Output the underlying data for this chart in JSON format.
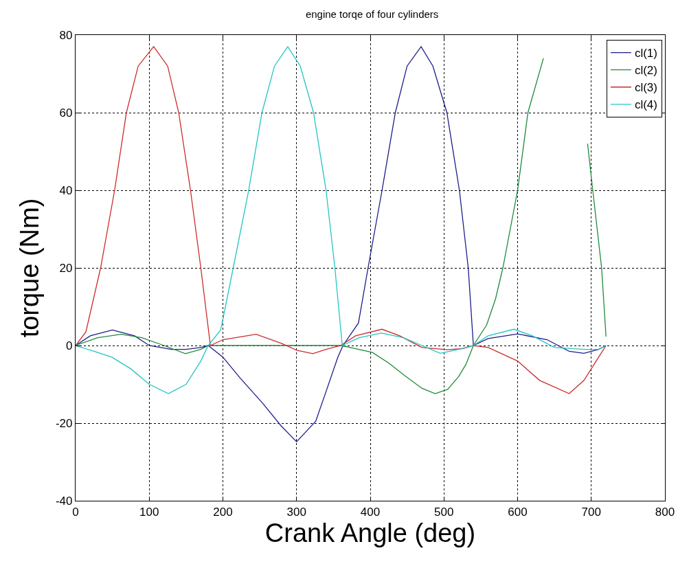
{
  "chart_data": {
    "type": "line",
    "title": "engine torqe of four cylinders",
    "xlabel": "Crank Angle (deg)",
    "ylabel": "torque (Nm)",
    "xlim": [
      0,
      800
    ],
    "xticks": [
      0,
      100,
      200,
      300,
      400,
      500,
      600,
      700,
      800
    ],
    "ylim": [
      -40,
      80
    ],
    "yticks": [
      -40,
      -20,
      0,
      20,
      40,
      60,
      80
    ],
    "grid": true,
    "legend": "top right",
    "line_style": "solid",
    "series": [
      {
        "name": "cl(1)",
        "color": "#1c1c8c",
        "x": [
          0,
          20,
          50,
          80,
          100,
          130,
          150,
          170,
          180,
          200,
          223,
          254,
          279,
          300,
          326,
          341,
          356,
          363,
          384,
          397,
          416,
          434,
          450,
          469,
          485,
          504,
          521,
          533,
          540,
          560,
          600,
          640,
          670,
          690,
          710,
          720
        ],
        "values": [
          0,
          2.5,
          4,
          2.5,
          0,
          -1,
          -1,
          -0.5,
          0,
          -3,
          -8.3,
          -14.9,
          -20.7,
          -24.8,
          -19.5,
          -11.3,
          -3,
          0,
          5.8,
          20,
          40,
          60,
          72,
          77,
          72,
          60,
          40,
          20,
          0,
          1.8,
          3,
          1.5,
          -1.5,
          -2,
          -1,
          0
        ]
      },
      {
        "name": "cl(2)",
        "color": "#1f8a3a",
        "x": [
          0,
          30,
          62,
          90,
          120,
          149,
          170,
          180,
          270,
          360,
          380,
          403,
          425,
          447,
          470,
          488,
          505,
          520,
          530,
          540,
          558,
          570,
          580,
          600,
          614,
          635,
          660,
          695,
          702,
          714,
          720
        ],
        "values": [
          0,
          2,
          2.9,
          2,
          0,
          -2.1,
          -1,
          0,
          0,
          0,
          -0.8,
          -1.8,
          -4.5,
          -7.8,
          -11,
          -12.4,
          -11.3,
          -8,
          -4.8,
          0,
          5.3,
          12,
          20,
          40,
          60,
          74,
          null,
          52,
          40,
          20,
          2.3
        ]
      },
      {
        "name": "cl(3)",
        "color": "#cc2a2a",
        "x": [
          0,
          14,
          34,
          53,
          69,
          85,
          106,
          125,
          140,
          156,
          170,
          183,
          200,
          245,
          280,
          300,
          322,
          340,
          360,
          380,
          416,
          440,
          470,
          505,
          525,
          540,
          560,
          600,
          630,
          670,
          690,
          710,
          720
        ],
        "values": [
          0,
          3.5,
          20,
          40,
          60,
          72,
          77,
          72,
          60,
          40,
          20,
          0,
          1.5,
          2.9,
          0.5,
          -1.2,
          -2.1,
          -1,
          0,
          2.5,
          4.2,
          2.5,
          -0.5,
          -1.1,
          -0.8,
          0,
          -0.5,
          -4,
          -9,
          -12.4,
          -9,
          -3,
          0
        ]
      },
      {
        "name": "cl(4)",
        "color": "#22c4c4",
        "x": [
          0,
          25,
          49,
          75,
          100,
          126,
          150,
          170,
          180,
          197,
          214,
          235,
          253,
          270,
          288,
          305,
          323,
          340,
          352,
          362,
          385,
          415,
          445,
          470,
          495,
          520,
          540,
          560,
          595,
          620,
          650,
          691,
          710,
          720
        ],
        "values": [
          0,
          -1.5,
          -3,
          -6,
          -10,
          -12.4,
          -10,
          -4,
          0,
          4,
          20,
          40,
          60,
          72,
          77,
          72,
          60,
          40,
          20,
          0,
          2,
          3.2,
          2,
          0,
          -2,
          -1,
          0,
          2.5,
          4.2,
          2.5,
          -0.5,
          -1,
          -1,
          0
        ]
      }
    ]
  }
}
